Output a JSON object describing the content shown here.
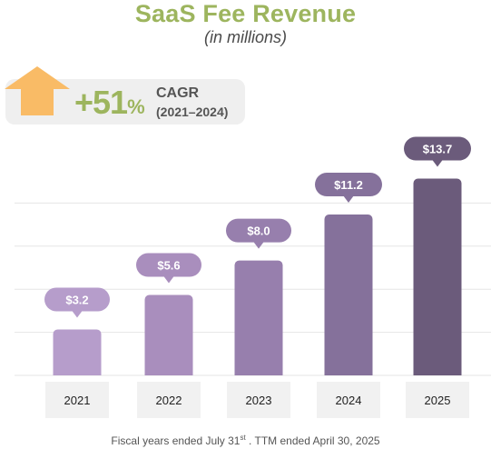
{
  "header": {
    "title": "SaaS Fee Revenue",
    "subtitle": "(in millions)"
  },
  "cagr": {
    "value": "+51",
    "pct_sign": "%",
    "label": "CAGR",
    "range": "(2021–2024)",
    "arrow_icon": "up-arrow-icon",
    "arrow_color": "#f9bb66"
  },
  "chart_data": {
    "type": "bar",
    "categories": [
      "2021",
      "2022",
      "2023",
      "2024",
      "2025"
    ],
    "values": [
      3.2,
      5.6,
      8.0,
      11.2,
      13.7
    ],
    "data_labels": [
      "$3.2",
      "$5.6",
      "$8.0",
      "$11.2",
      "$13.7"
    ],
    "title": "SaaS Fee Revenue",
    "ylim": [
      0,
      15
    ],
    "grid": true,
    "colors": [
      "#b69dcb",
      "#a98ebd",
      "#977fad",
      "#85719b",
      "#6b5b7b"
    ],
    "bubble_colors": [
      "#b69dcb",
      "#a98ebd",
      "#977fad",
      "#85719b",
      "#6b5b7b"
    ],
    "category_box_color": "#f1f1f1",
    "grid_color": "#e6e6e6"
  },
  "footnote": {
    "text_before": "Fiscal years  ended July 31",
    "superscript": "st",
    "text_after": " .  TTM ended April 30, 2025"
  }
}
